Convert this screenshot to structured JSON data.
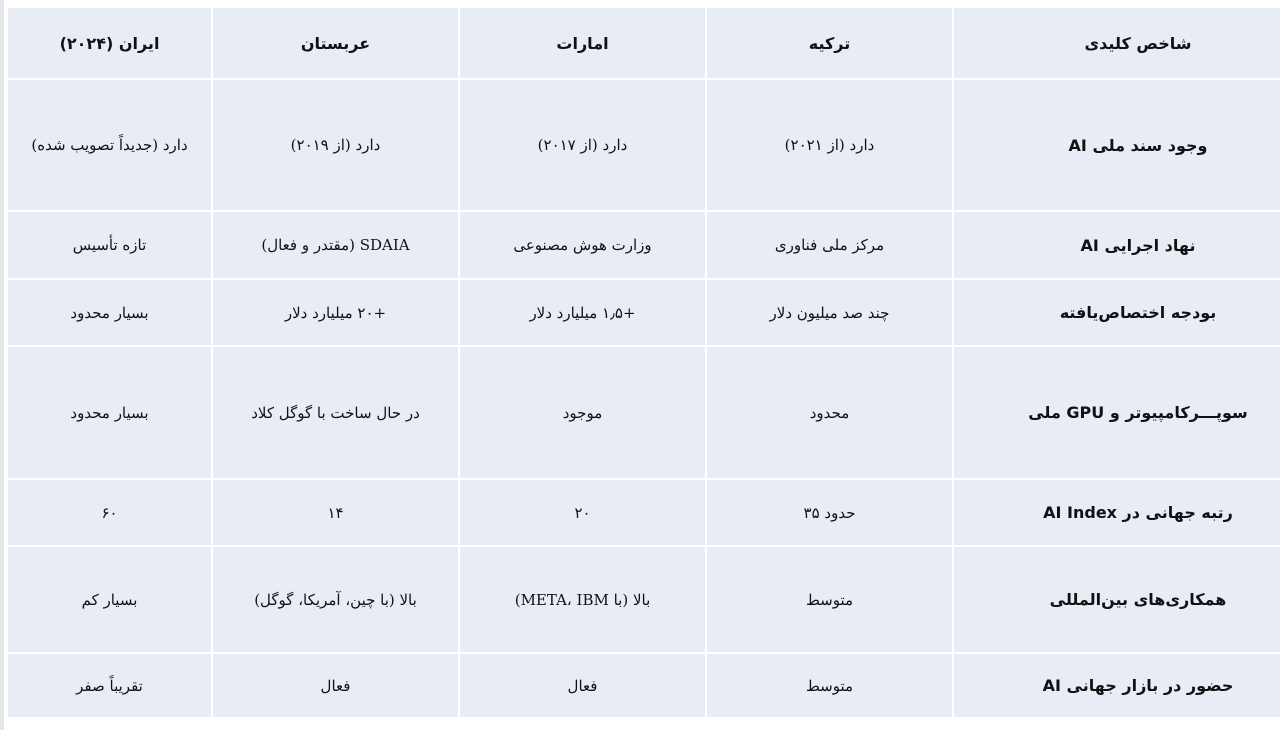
{
  "table": {
    "headers": [
      "شاخص کلیدی",
      "ترکیه",
      "امارات",
      "عربستان",
      "ایران (۲۰۲۴)"
    ],
    "rows": [
      [
        "وجود سند ملی AI",
        "دارد (از ۲۰۲۱)",
        "دارد (از ۲۰۱۷)",
        "دارد (از ۲۰۱۹)",
        "دارد (جدیداً تصویب شده)"
      ],
      [
        "نهاد اجرایی AI",
        "مرکز ملی فناوری",
        "وزارت هوش مصنوعی",
        "SDAIA (مقتدر و فعال)",
        "تازه تأسیس"
      ],
      [
        "بودجه اختصاص‌یافته",
        "چند صد میلیون دلار",
        "+۱٫۵ میلیارد دلار",
        "+۲۰ میلیارد دلار",
        "بسیار محدود"
      ],
      [
        "سوپـــرکامپیوتر و  GPU ملی",
        "محدود",
        "موجود",
        "در حال ساخت با گوگل کلاد",
        "بسیار محدود"
      ],
      [
        "رتبه جهانی در AI Index",
        "حدود ۳۵",
        "۲۰",
        "۱۴",
        "۶۰"
      ],
      [
        "همکاری‌های بین‌المللی",
        "متوسط",
        "بالا (با META، IBM)",
        "بالا (با چین، آمریکا، گوگل)",
        "بسیار کم"
      ],
      [
        "حضور در بازار جهانی AI",
        "متوسط",
        "فعال",
        "فعال",
        "تقریباً صفر"
      ]
    ]
  }
}
